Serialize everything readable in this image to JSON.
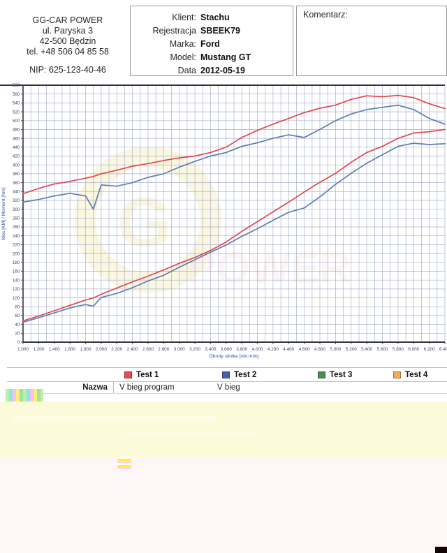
{
  "company": {
    "name": "GG-CAR POWER",
    "address_line1": "ul. Paryska 3",
    "address_line2": "42-500 Będzin",
    "phone": "tel. +48 506 04 85 58",
    "nip": "NIP: 625-123-40-46"
  },
  "client_info": {
    "rows": [
      {
        "label": "Klient:",
        "value": "Stachu"
      },
      {
        "label": "Rejestracja",
        "value": "SBEEK79"
      },
      {
        "label": "Marka:",
        "value": "Ford"
      },
      {
        "label": "Model:",
        "value": "Mustang GT"
      },
      {
        "label": "Data",
        "value": "2012-05-19"
      }
    ]
  },
  "comment": {
    "label": "Komentarz:"
  },
  "chart_data": {
    "type": "line",
    "title": "",
    "xlabel": "Obroty silnika [obr./min]",
    "ylabel": "Moc [KM] / Moment [Nm]",
    "xlim": [
      1000,
      6400
    ],
    "ylim": [
      0,
      580
    ],
    "x_grid_step": 100,
    "y_grid_step": 20,
    "x_tick_step": 200,
    "x_tick_labels": [
      "1.000",
      "1.200",
      "1.400",
      "1.600",
      "1.800",
      "2.000",
      "2.200",
      "2.400",
      "2.600",
      "2.800",
      "3.000",
      "3.200",
      "3.400",
      "3.600",
      "3.800",
      "4.000",
      "4.200",
      "4.400",
      "4.600",
      "4.800",
      "5.000",
      "5.200",
      "5.400",
      "5.600",
      "5.800",
      "6.000",
      "6.200",
      "6.400"
    ],
    "grid": true,
    "legend_position": "bottom-table",
    "x": [
      1000,
      1200,
      1400,
      1600,
      1800,
      1900,
      2000,
      2200,
      2400,
      2600,
      2800,
      3000,
      3200,
      3400,
      3600,
      3800,
      4000,
      4200,
      4400,
      4600,
      4800,
      5000,
      5200,
      5400,
      5600,
      5800,
      6000,
      6200,
      6400
    ],
    "series": [
      {
        "name": "Test 1 — Moment [Nm]",
        "color": "#e0484f",
        "values": [
          335,
          347,
          357,
          363,
          370,
          374,
          380,
          388,
          397,
          403,
          410,
          416,
          420,
          428,
          440,
          462,
          478,
          492,
          505,
          518,
          528,
          535,
          548,
          556,
          554,
          557,
          552,
          538,
          527
        ]
      },
      {
        "name": "Test 2 — Moment [Nm]",
        "color": "#5b7fb2",
        "values": [
          316,
          322,
          330,
          336,
          330,
          300,
          355,
          352,
          360,
          372,
          380,
          395,
          408,
          420,
          428,
          442,
          450,
          460,
          468,
          462,
          480,
          500,
          515,
          525,
          530,
          535,
          525,
          505,
          492
        ]
      },
      {
        "name": "Test 1 — Moc [KM]",
        "color": "#e0484f",
        "values": [
          48,
          59,
          71,
          83,
          95,
          100,
          108,
          122,
          136,
          149,
          163,
          178,
          191,
          207,
          226,
          250,
          272,
          294,
          316,
          339,
          361,
          381,
          406,
          428,
          442,
          460,
          472,
          475,
          480
        ]
      },
      {
        "name": "Test 2 — Moc [KM]",
        "color": "#5b7fb2",
        "values": [
          45,
          55,
          66,
          77,
          85,
          81,
          101,
          110,
          123,
          138,
          151,
          169,
          186,
          203,
          219,
          239,
          256,
          275,
          293,
          303,
          328,
          356,
          381,
          404,
          423,
          442,
          449,
          446,
          448
        ]
      }
    ],
    "colors": {
      "grid": "#a9b2cf",
      "axis": "#34343f",
      "tick_text": "#3a4668",
      "axis_title": "#2b4ea8"
    },
    "watermark": {
      "text1": "G",
      "text2": "POWER"
    }
  },
  "legend": {
    "tests": [
      {
        "label": "Test 1",
        "color": "#e9494f"
      },
      {
        "label": "Test 2",
        "color": "#4a5fb0"
      },
      {
        "label": "Test 3",
        "color": "#4f8c55"
      },
      {
        "label": "Test 4",
        "color": "#f5ab5e"
      }
    ],
    "row_label": "Nazwa",
    "values": [
      "V bieg program",
      "V bieg",
      "",
      ""
    ]
  }
}
